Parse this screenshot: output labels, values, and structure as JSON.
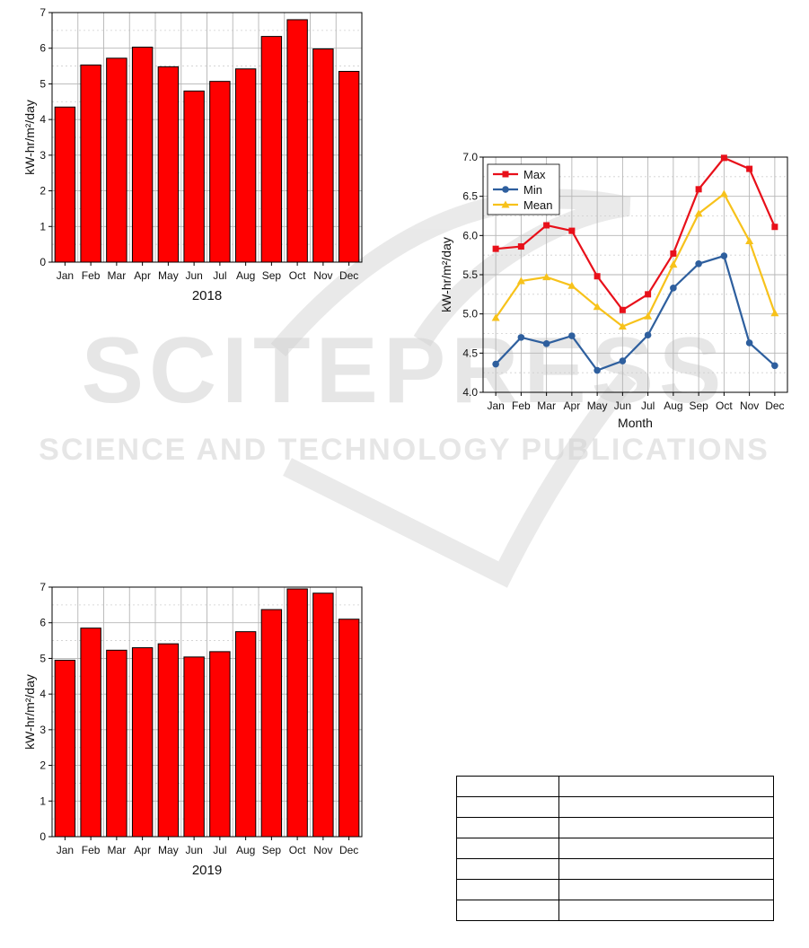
{
  "chart_data": [
    {
      "type": "bar",
      "categories": [
        "Jan",
        "Feb",
        "Mar",
        "Apr",
        "May",
        "Jun",
        "Jul",
        "Aug",
        "Sep",
        "Oct",
        "Nov",
        "Dec"
      ],
      "values": [
        4.35,
        5.53,
        5.72,
        6.03,
        5.48,
        4.8,
        5.07,
        5.42,
        6.33,
        6.8,
        5.98,
        5.35
      ],
      "title": "",
      "xlabel": "2018",
      "ylabel": "kW-hr/m²/day",
      "ylim": [
        0,
        7
      ],
      "yticks": [
        "0",
        "1",
        "2",
        "3",
        "4",
        "5",
        "6",
        "7"
      ],
      "grid": true,
      "color": "#ff0000"
    },
    {
      "type": "bar",
      "categories": [
        "Jan",
        "Feb",
        "Mar",
        "Apr",
        "May",
        "Jun",
        "Jul",
        "Aug",
        "Sep",
        "Oct",
        "Nov",
        "Dec"
      ],
      "values": [
        4.95,
        5.85,
        5.23,
        5.3,
        5.41,
        5.04,
        5.19,
        5.75,
        6.37,
        6.95,
        6.83,
        6.1
      ],
      "title": "",
      "xlabel": "2019",
      "ylabel": "kW-hr/m²/day",
      "ylim": [
        0,
        7
      ],
      "yticks": [
        "0",
        "1",
        "2",
        "3",
        "4",
        "5",
        "6",
        "7"
      ],
      "grid": true,
      "color": "#ff0000"
    },
    {
      "type": "line",
      "categories": [
        "Jan",
        "Feb",
        "Mar",
        "Apr",
        "May",
        "Jun",
        "Jul",
        "Aug",
        "Sep",
        "Oct",
        "Nov",
        "Dec"
      ],
      "series": [
        {
          "name": "Max",
          "color": "#e8101a",
          "marker": "square",
          "values": [
            5.83,
            5.86,
            6.13,
            6.06,
            5.48,
            5.05,
            5.25,
            5.77,
            6.59,
            6.99,
            6.85,
            6.11
          ]
        },
        {
          "name": "Min",
          "color": "#2e5f9e",
          "marker": "circle",
          "values": [
            4.36,
            4.7,
            4.62,
            4.72,
            4.28,
            4.4,
            4.73,
            5.33,
            5.64,
            5.74,
            4.63,
            4.34
          ]
        },
        {
          "name": "Mean",
          "color": "#f7c21b",
          "marker": "triangle",
          "values": [
            4.95,
            5.42,
            5.47,
            5.36,
            5.09,
            4.84,
            4.97,
            5.63,
            6.28,
            6.53,
            5.93,
            5.01
          ]
        }
      ],
      "title": "",
      "xlabel": "Month",
      "ylabel": "kW-hr/m²/day",
      "ylim": [
        4.0,
        7.0
      ],
      "yticks": [
        "4.0",
        "4.5",
        "5.0",
        "5.5",
        "6.0",
        "6.5",
        "7.0"
      ],
      "grid": true,
      "legend": "top-left"
    }
  ],
  "watermark": {
    "line1": "SCITEPRESS",
    "line2": "SCIENCE AND TECHNOLOGY PUBLICATIONS"
  },
  "table": {
    "rows": 7,
    "cols": 2,
    "cells": []
  }
}
